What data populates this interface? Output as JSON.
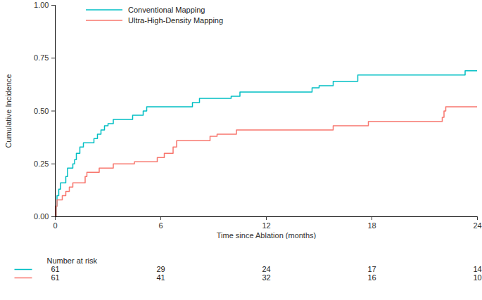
{
  "chart_data": {
    "type": "line",
    "x_label": "Time since Ablation (months)",
    "y_label": "Cumulative Incidence",
    "xlim": [
      0,
      24
    ],
    "xticks": [
      0,
      6,
      12,
      18,
      24
    ],
    "ylim": [
      0,
      1
    ],
    "yticks": [
      {
        "value": 0,
        "label": "0.00"
      },
      {
        "value": 0.25,
        "label": "0.25"
      },
      {
        "value": 0.5,
        "label": "0.50"
      },
      {
        "value": 0.75,
        "label": "0.75"
      },
      {
        "value": 1,
        "label": "1.00"
      }
    ],
    "grid": false,
    "legend": "top-left",
    "line_style": "step",
    "series": [
      {
        "name": "Conventional Mapping",
        "color": "#00BFC4",
        "x": [
          0,
          0.05,
          0.1,
          0.2,
          0.3,
          0.6,
          0.7,
          1.0,
          1.1,
          1.2,
          1.4,
          1.6,
          2.2,
          2.4,
          2.6,
          2.8,
          3.0,
          3.3,
          4.4,
          5.0,
          5.2,
          7.8,
          8.2,
          10.0,
          10.5,
          14.6,
          15.0,
          15.8,
          17.2,
          23.3,
          24
        ],
        "values": [
          0,
          0.05,
          0.1,
          0.13,
          0.16,
          0.19,
          0.23,
          0.25,
          0.27,
          0.3,
          0.33,
          0.35,
          0.37,
          0.39,
          0.41,
          0.43,
          0.44,
          0.46,
          0.48,
          0.5,
          0.52,
          0.54,
          0.56,
          0.57,
          0.59,
          0.61,
          0.62,
          0.64,
          0.67,
          0.69,
          0.69
        ],
        "at_risk": [
          61,
          29,
          24,
          17,
          14
        ]
      },
      {
        "name": "Ultra-High-Density Mapping",
        "color": "#F8766D",
        "x": [
          0,
          0.05,
          0.1,
          0.4,
          0.6,
          0.8,
          1.0,
          1.7,
          1.8,
          2.5,
          3.3,
          4.5,
          5.8,
          6.2,
          6.7,
          6.9,
          8.8,
          9.2,
          10.3,
          15.8,
          17.8,
          22.0,
          22.1,
          22.2,
          24
        ],
        "values": [
          0,
          0.05,
          0.08,
          0.1,
          0.12,
          0.14,
          0.16,
          0.19,
          0.21,
          0.23,
          0.25,
          0.26,
          0.28,
          0.3,
          0.33,
          0.36,
          0.38,
          0.39,
          0.41,
          0.43,
          0.45,
          0.47,
          0.5,
          0.52,
          0.52
        ],
        "at_risk": [
          61,
          41,
          32,
          16,
          10
        ]
      }
    ],
    "at_risk_title": "Number at risk",
    "at_risk_x": [
      0,
      6,
      12,
      18,
      24
    ]
  }
}
